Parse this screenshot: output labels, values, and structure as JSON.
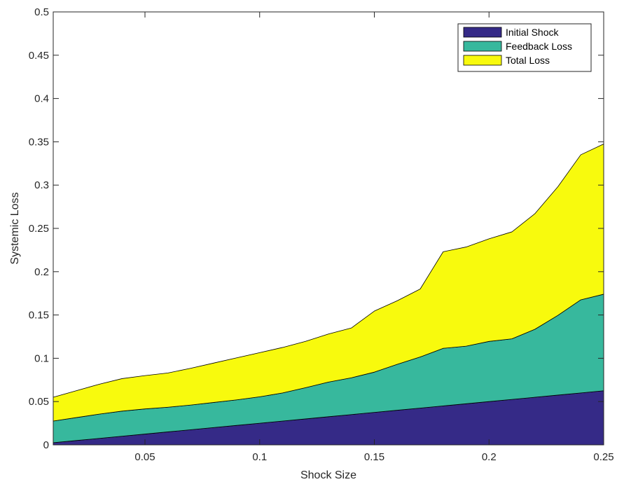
{
  "chart_data": {
    "type": "area",
    "stacked": true,
    "xlabel": "Shock Size",
    "ylabel": "Systemic Loss",
    "xlim": [
      0.01,
      0.25
    ],
    "ylim": [
      0,
      0.5
    ],
    "xticks": [
      0.05,
      0.1,
      0.15,
      0.2,
      0.25
    ],
    "xtick_labels": [
      "0.05",
      "0.1",
      "0.15",
      "0.2",
      "0.25"
    ],
    "yticks": [
      0,
      0.05,
      0.1,
      0.15,
      0.2,
      0.25,
      0.3,
      0.35,
      0.4,
      0.45,
      0.5
    ],
    "ytick_labels": [
      "0",
      "0.05",
      "0.1",
      "0.15",
      "0.2",
      "0.25",
      "0.3",
      "0.35",
      "0.4",
      "0.45",
      "0.5"
    ],
    "legend_position": "top-right",
    "grid": false,
    "x": [
      0.01,
      0.02,
      0.03,
      0.04,
      0.05,
      0.06,
      0.07,
      0.08,
      0.09,
      0.1,
      0.11,
      0.12,
      0.13,
      0.14,
      0.15,
      0.16,
      0.17,
      0.18,
      0.19,
      0.2,
      0.21,
      0.22,
      0.23,
      0.24,
      0.25
    ],
    "series": [
      {
        "name": "Initial Shock",
        "color": "#352a87",
        "values": [
          0.0025,
          0.005,
          0.0075,
          0.01,
          0.0125,
          0.015,
          0.0175,
          0.02,
          0.0225,
          0.025,
          0.0275,
          0.03,
          0.0325,
          0.035,
          0.0375,
          0.04,
          0.0425,
          0.045,
          0.0475,
          0.05,
          0.0525,
          0.055,
          0.0575,
          0.06,
          0.0625
        ]
      },
      {
        "name": "Feedback Loss",
        "color": "#37b89d",
        "values": [
          0.025,
          0.0265,
          0.028,
          0.029,
          0.029,
          0.0285,
          0.0285,
          0.029,
          0.0295,
          0.0305,
          0.0325,
          0.036,
          0.04,
          0.0425,
          0.0465,
          0.053,
          0.059,
          0.0665,
          0.0665,
          0.0695,
          0.07,
          0.0785,
          0.092,
          0.1075,
          0.1115
        ]
      },
      {
        "name": "Total Loss",
        "color": "#f8fa0d",
        "values": [
          0.0275,
          0.031,
          0.0345,
          0.0375,
          0.0385,
          0.0395,
          0.0425,
          0.0455,
          0.0485,
          0.051,
          0.0525,
          0.0535,
          0.0555,
          0.0575,
          0.0705,
          0.0735,
          0.0785,
          0.1115,
          0.1145,
          0.1185,
          0.1235,
          0.1335,
          0.1485,
          0.1675,
          0.1735
        ]
      }
    ]
  }
}
